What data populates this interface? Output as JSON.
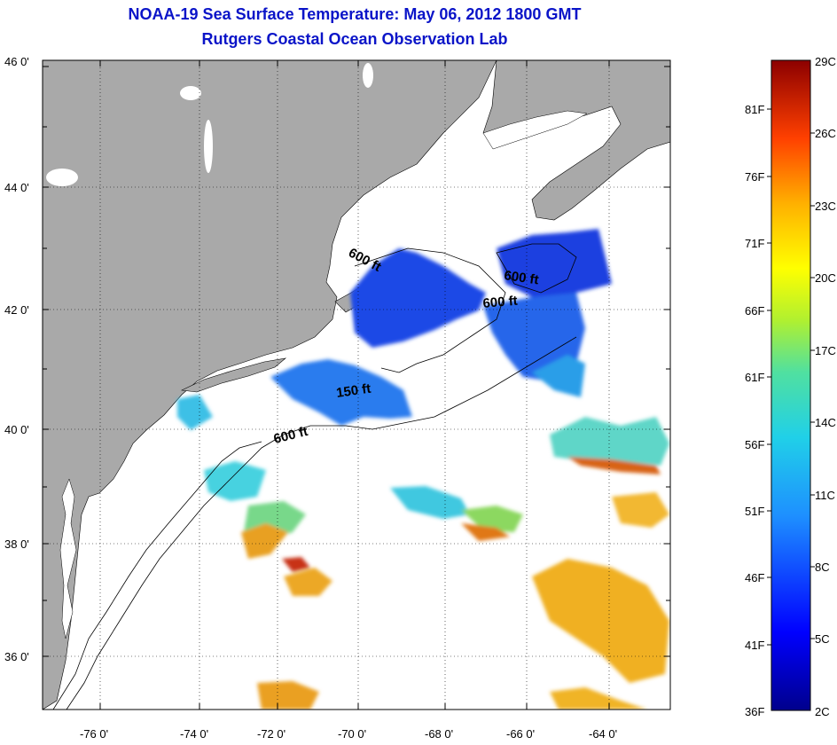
{
  "header": {
    "title": "NOAA-19 Sea Surface Temperature:  May 06, 2012 1800 GMT",
    "subtitle": "Rutgers Coastal Ocean Observation Lab"
  },
  "map": {
    "lat_labels": [
      "46 0'",
      "44 0'",
      "42 0'",
      "40 0'",
      "38 0'",
      "36 0'"
    ],
    "lon_labels": [
      "-76 0'",
      "-74 0'",
      "-72 0'",
      "-70 0'",
      "-68 0'",
      "-66 0'",
      "-64 0'"
    ],
    "contour_labels": [
      "600 ft",
      "600 ft",
      "600 ft",
      "150 ft",
      "600 ft"
    ],
    "colors": {
      "land": "#a9a9a9",
      "ocean": "#ffffff",
      "cold": "#1a3fe0",
      "cool": "#2f8ef0",
      "cyan": "#3cd6e0",
      "warm": "#f0b020",
      "hot": "#e05a10"
    }
  },
  "colorbar": {
    "celsius": [
      "29C",
      "26C",
      "23C",
      "20C",
      "17C",
      "14C",
      "11C",
      "8C",
      "5C",
      "2C"
    ],
    "fahrenheit": [
      "81F",
      "76F",
      "71F",
      "66F",
      "61F",
      "56F",
      "51F",
      "46F",
      "41F",
      "36F"
    ]
  }
}
